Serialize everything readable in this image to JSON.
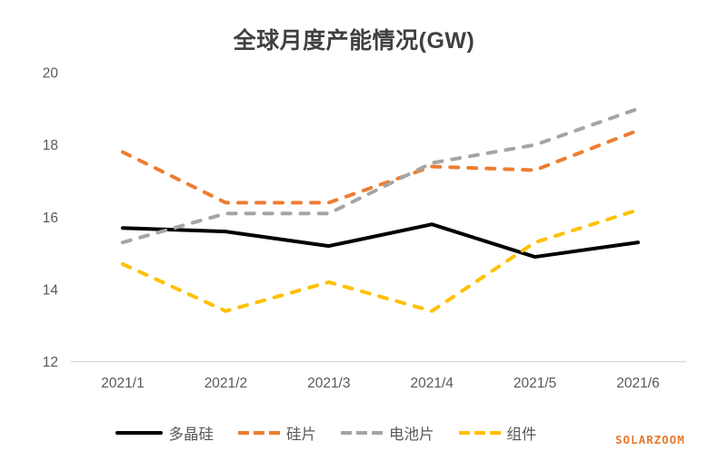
{
  "watermark": "SOLARZOOM",
  "chart_data": {
    "type": "line",
    "title": "全球月度产能情况(GW)",
    "categories": [
      "2021/1",
      "2021/2",
      "2021/3",
      "2021/4",
      "2021/5",
      "2021/6"
    ],
    "series": [
      {
        "key": "polysilicon",
        "name": "多晶硅",
        "color": "#000000",
        "style": "solid",
        "values": [
          15.7,
          15.6,
          15.2,
          15.8,
          14.9,
          15.3
        ]
      },
      {
        "key": "wafer",
        "name": "硅片",
        "color": "#ED7D31",
        "style": "dashed",
        "values": [
          17.8,
          16.4,
          16.4,
          17.4,
          17.3,
          18.4
        ]
      },
      {
        "key": "cell",
        "name": "电池片",
        "color": "#A5A5A5",
        "style": "dashed",
        "values": [
          15.3,
          16.1,
          16.1,
          17.5,
          18.0,
          19.0
        ]
      },
      {
        "key": "module",
        "name": "组件",
        "color": "#FFC000",
        "style": "dashed",
        "values": [
          14.7,
          13.4,
          14.2,
          13.4,
          15.3,
          16.2
        ]
      }
    ],
    "ylim": [
      12,
      20
    ],
    "yticks": [
      20,
      18,
      16,
      14,
      12
    ],
    "grid": false,
    "legend_position": "bottom",
    "axis_color": "#D9D9D9",
    "tick_label_color": "#595959"
  }
}
